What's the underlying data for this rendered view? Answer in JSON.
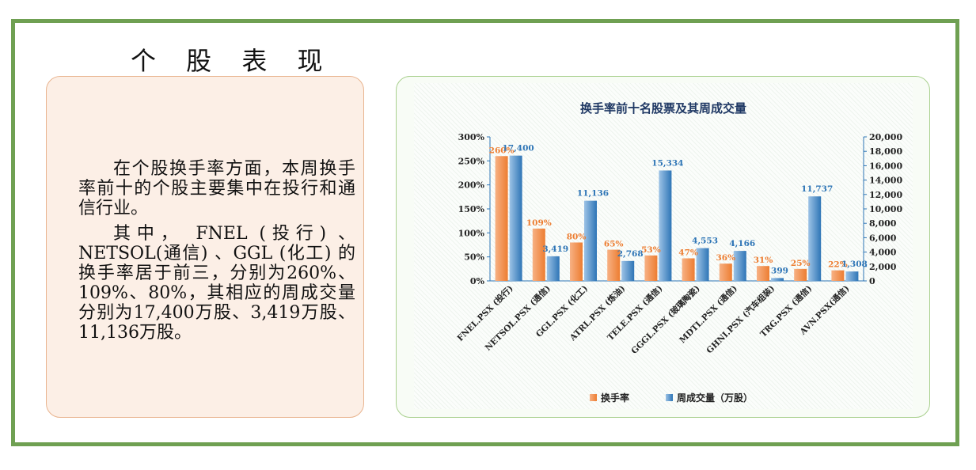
{
  "page_title": "个 股 表 现",
  "paragraphs": [
    "在个股换手率方面，本周换手率前十的个股主要集中在投行和通信行业。",
    "其中， FNEL (投行) 、NETSOL(通信) 、GGL (化工) 的换手率居于前三，分别为260%、109%、80%，其相应的周成交量分别为17,400万股、3,419万股、11,136万股。"
  ],
  "colors": {
    "turnover": "#ed7d31",
    "volume": "#2e75b6",
    "frame": "#6fa052"
  },
  "chart_data": {
    "type": "bar",
    "title": "换手率前十名股票及其周成交量",
    "categories": [
      "FNEL.PSX (投行)",
      "NETSOL.PSX (通信)",
      "GGL.PSX (化工)",
      "ATRL.PSX (炼油)",
      "TELE.PSX (通信)",
      "GGGL.PSX (玻璃陶瓷)",
      "MDTL.PSX (通信)",
      "GHNI.PSX (汽车组装)",
      "TRG.PSX (通信)",
      "AVN.PSX(通信)"
    ],
    "series": [
      {
        "name": "换手率",
        "axis": "left",
        "values": [
          260,
          109,
          80,
          65,
          53,
          47,
          36,
          31,
          25,
          22
        ],
        "labels": [
          "260%",
          "109%",
          "80%",
          "65%",
          "53%",
          "47%",
          "36%",
          "31%",
          "25%",
          "22%"
        ]
      },
      {
        "name": "周成交量（万股）",
        "axis": "right",
        "values": [
          17400,
          3419,
          11136,
          2768,
          15334,
          4553,
          4166,
          399,
          11737,
          1308
        ],
        "labels": [
          "17,400",
          "3,419",
          "11,136",
          "2,768",
          "15,334",
          "4,553",
          "4,166",
          "399",
          "11,737",
          "1,308"
        ]
      }
    ],
    "y_left": {
      "range": [
        0,
        300
      ],
      "ticks": [
        "0%",
        "50%",
        "100%",
        "150%",
        "200%",
        "250%",
        "300%"
      ]
    },
    "y_right": {
      "range": [
        0,
        20000
      ],
      "ticks": [
        "0",
        "2,000",
        "4,000",
        "6,000",
        "8,000",
        "10,000",
        "12,000",
        "14,000",
        "16,000",
        "18,000",
        "20,000"
      ]
    },
    "legend_position": "bottom"
  }
}
